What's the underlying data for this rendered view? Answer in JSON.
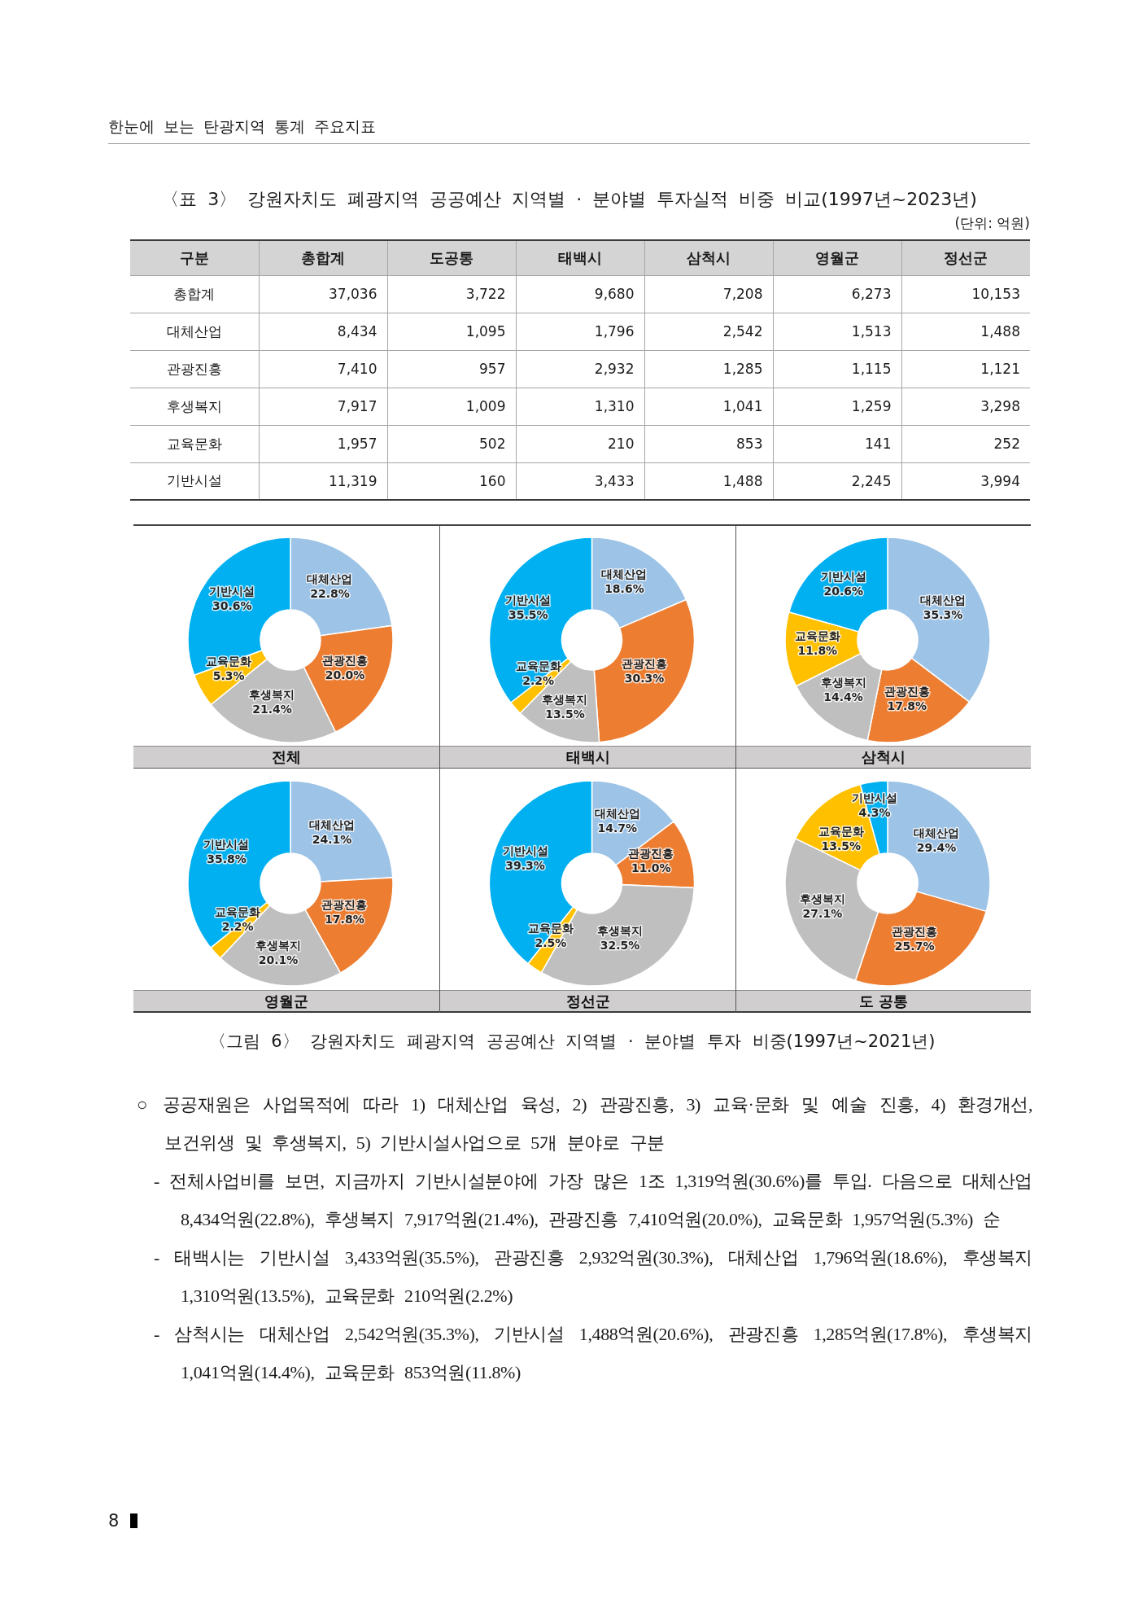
{
  "chart_data": [
    {
      "type": "heatmap",
      "title": "〈표 3〉 강원자치도 폐광지역 공공예산 지역별 · 분야별 투자실적 비중 비교(1997년~2023년)",
      "ylabel": "구분",
      "annotations": [
        "한눈에 보는 탄광지역 통계 주요지표",
        "(단위: 억원)"
      ],
      "categories": [
        "총합계",
        "도공통",
        "태백시",
        "삼척시",
        "영월군",
        "정선군"
      ],
      "y_categories": [
        "총합계",
        "대체산업",
        "관광진흥",
        "후생복지",
        "교육문화",
        "기반시설"
      ],
      "cells": [
        [
          37036,
          3722,
          9680,
          7208,
          6273,
          10153
        ],
        [
          8434,
          1095,
          1796,
          2542,
          1513,
          1488
        ],
        [
          7410,
          957,
          2932,
          1285,
          1115,
          1121
        ],
        [
          7917,
          1009,
          1310,
          1041,
          1259,
          3298
        ],
        [
          1957,
          502,
          210,
          853,
          141,
          252
        ],
        [
          11319,
          160,
          3433,
          1488,
          2245,
          3994
        ]
      ],
      "cell_labels": [
        [
          "37,036",
          "3,722",
          "9,680",
          "7,208",
          "6,273",
          "10,153"
        ],
        [
          "8,434",
          "1,095",
          "1,796",
          "2,542",
          "1,513",
          "1,488"
        ],
        [
          "7,410",
          "957",
          "2,932",
          "1,285",
          "1,115",
          "1,121"
        ],
        [
          "7,917",
          "1,009",
          "1,310",
          "1,041",
          "1,259",
          "3,298"
        ],
        [
          "1,957",
          "502",
          "210",
          "853",
          "141",
          "252"
        ],
        [
          "11,319",
          "160",
          "3,433",
          "1,488",
          "2,245",
          "3,994"
        ]
      ]
    },
    {
      "type": "donut",
      "title": "전체",
      "categories": [
        "대체산업",
        "관광진흥",
        "후생복지",
        "교육문화",
        "기반시설"
      ],
      "values": [
        22.8,
        20.0,
        21.4,
        5.3,
        30.6
      ],
      "value_labels": [
        "22.8%",
        "20.0%",
        "21.4%",
        "5.3%",
        "30.6%"
      ],
      "colors": [
        "#9dc3e6",
        "#ed7d31",
        "#bfbfbf",
        "#ffc000",
        "#00b0f0"
      ]
    },
    {
      "type": "donut",
      "title": "태백시",
      "categories": [
        "대체산업",
        "관광진흥",
        "후생복지",
        "교육문화",
        "기반시설"
      ],
      "values": [
        18.6,
        30.3,
        13.5,
        2.2,
        35.5
      ],
      "value_labels": [
        "18.6%",
        "30.3%",
        "13.5%",
        "2.2%",
        "35.5%"
      ],
      "colors": [
        "#9dc3e6",
        "#ed7d31",
        "#bfbfbf",
        "#ffc000",
        "#00b0f0"
      ]
    },
    {
      "type": "donut",
      "title": "삼척시",
      "categories": [
        "대체산업",
        "관광진흥",
        "후생복지",
        "교육문화",
        "기반시설"
      ],
      "values": [
        35.3,
        17.8,
        14.4,
        11.8,
        20.6
      ],
      "value_labels": [
        "35.3%",
        "17.8%",
        "14.4%",
        "11.8%",
        "20.6%"
      ],
      "colors": [
        "#9dc3e6",
        "#ed7d31",
        "#bfbfbf",
        "#ffc000",
        "#00b0f0"
      ]
    },
    {
      "type": "donut",
      "title": "영월군",
      "categories": [
        "대체산업",
        "관광진흥",
        "후생복지",
        "교육문화",
        "기반시설"
      ],
      "values": [
        24.1,
        17.8,
        20.1,
        2.2,
        35.8
      ],
      "value_labels": [
        "24.1%",
        "17.8%",
        "20.1%",
        "2.2%",
        "35.8%"
      ],
      "colors": [
        "#9dc3e6",
        "#ed7d31",
        "#bfbfbf",
        "#ffc000",
        "#00b0f0"
      ]
    },
    {
      "type": "donut",
      "title": "정선군",
      "categories": [
        "대체산업",
        "관광진흥",
        "후생복지",
        "교육문화",
        "기반시설"
      ],
      "values": [
        14.7,
        11.0,
        32.5,
        2.5,
        39.3
      ],
      "value_labels": [
        "14.7%",
        "11.0%",
        "32.5%",
        "2.5%",
        "39.3%"
      ],
      "colors": [
        "#9dc3e6",
        "#ed7d31",
        "#bfbfbf",
        "#ffc000",
        "#00b0f0"
      ]
    },
    {
      "type": "donut",
      "title": "도 공통",
      "categories": [
        "대체산업",
        "관광진흥",
        "후생복지",
        "교육문화",
        "기반시설"
      ],
      "values": [
        29.4,
        25.7,
        27.1,
        13.5,
        4.3
      ],
      "value_labels": [
        "29.4%",
        "25.7%",
        "27.1%",
        "13.5%",
        "4.3%"
      ],
      "colors": [
        "#9dc3e6",
        "#ed7d31",
        "#bfbfbf",
        "#ffc000",
        "#00b0f0"
      ]
    },
    {
      "type": "other",
      "annotations": [
        "〈그림 6〉 강원자치도 폐광지역 공공예산 지역별 · 분야별 투자 비중(1997년~2021년)",
        "○ 공공재원은 사업목적에 따라 1) 대체산업 육성, 2) 관광진흥, 3) 교육·문화 및 예술 진흥, 4) 환경개선, 보건위생 및 후생복지, 5) 기반시설사업으로 5개 분야로 구분",
        "- 전체사업비를 보면, 지금까지 기반시설분야에 가장 많은 1조 1,319억원(30.6%)를 투입. 다음으로 대체산업 8,434억원(22.8%), 후생복지 7,917억원(21.4%), 관광진흥 7,410억원(20.0%), 교육문화 1,957억원(5.3%) 순",
        "- 태백시는 기반시설 3,433억원(35.5%), 관광진흥 2,932억원(30.3%), 대체산업 1,796억원(18.6%), 후생복지 1,310억원(13.5%), 교육문화 210억원(2.2%)",
        "- 삼척시는 대체산업 2,542억원(35.3%), 기반시설 1,488억원(20.6%), 관광진흥 1,285억원(17.8%), 후생복지 1,041억원(14.4%), 교육문화 853억원(11.8%)",
        "8"
      ]
    }
  ]
}
